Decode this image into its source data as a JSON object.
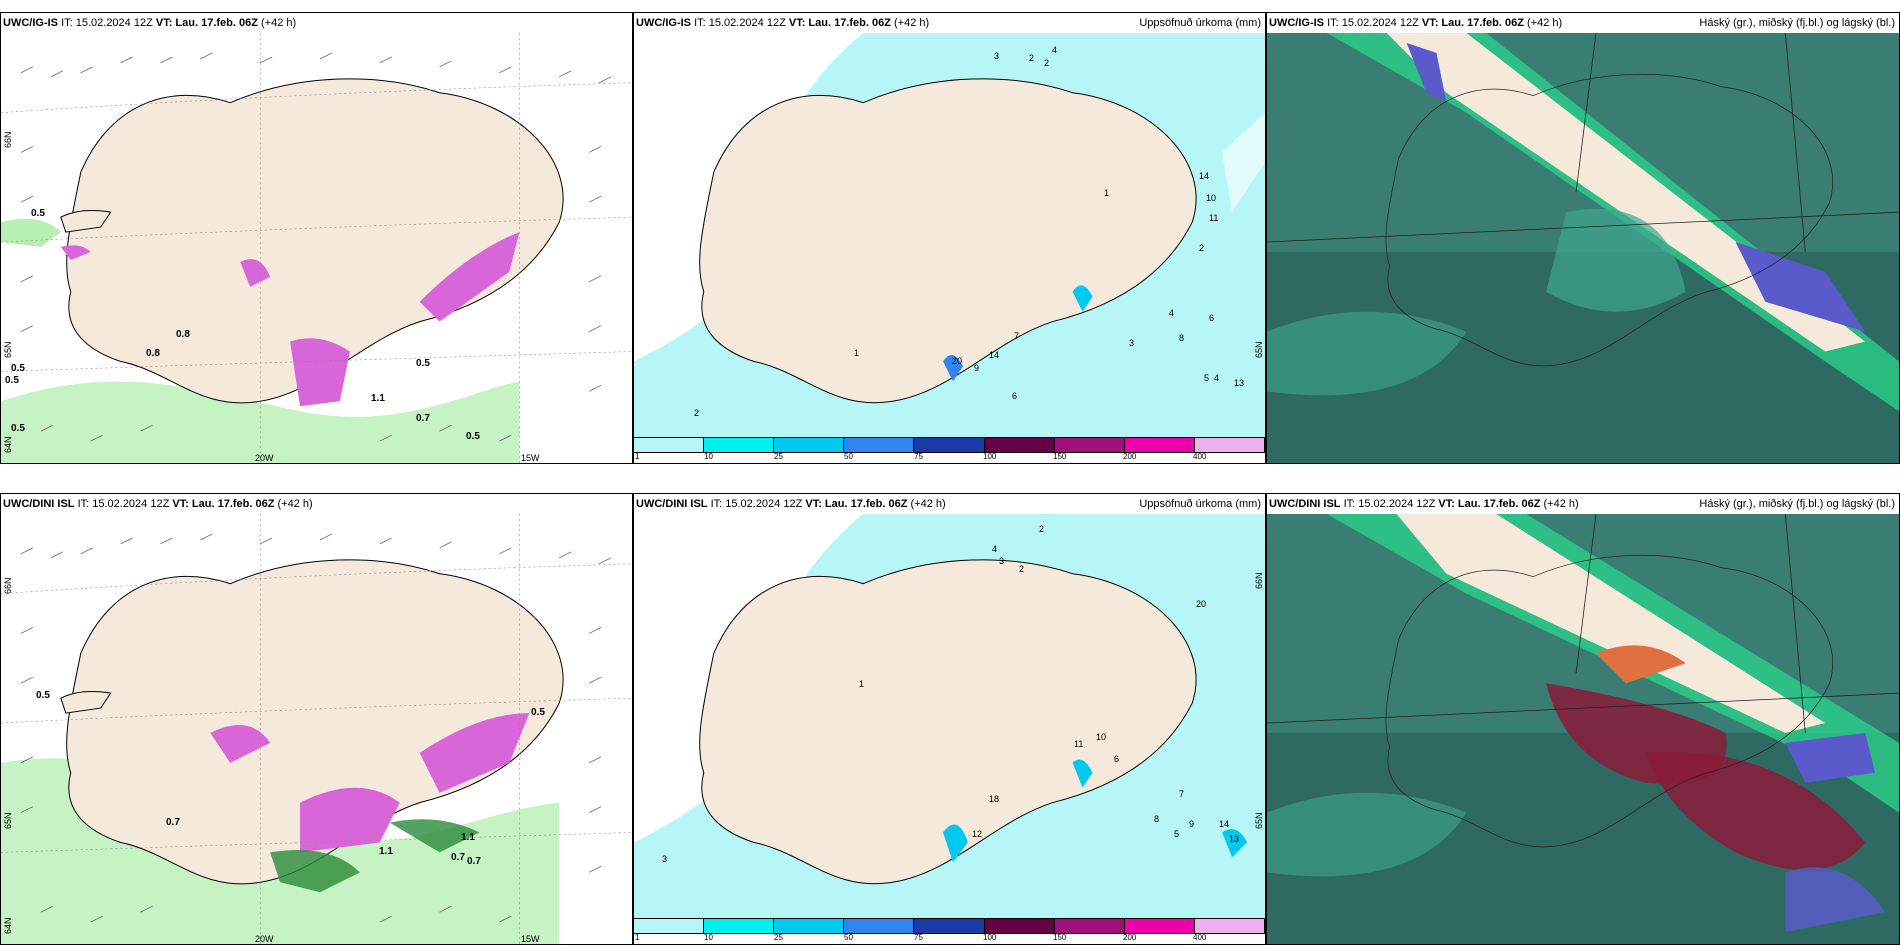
{
  "panels": {
    "top_left": {
      "model": "UWC/IG-IS",
      "it": "IT: 15.02.2024 12Z",
      "vt_label": "VT:",
      "vt": "Lau. 17.feb. 06Z",
      "lead": "(+42 h)",
      "right_title": ""
    },
    "top_mid": {
      "model": "UWC/IG-IS",
      "it": "IT: 15.02.2024 12Z",
      "vt_label": "VT:",
      "vt": "Lau. 17.feb. 06Z",
      "lead": "(+42 h)",
      "right_title": "Uppsöfnuð úrkoma (mm)"
    },
    "top_right": {
      "model": "UWC/IG-IS",
      "it": "IT: 15.02.2024 12Z",
      "vt_label": "VT:",
      "vt": "Lau. 17.feb. 06Z",
      "lead": "(+42 h)",
      "right_title": "Háský (gr.), miðský (fj.bl.) og lágský (bl.)"
    },
    "bot_left": {
      "model": "UWC/DINI ISL",
      "it": "IT: 15.02.2024 12Z",
      "vt_label": "VT:",
      "vt": "Lau. 17.feb. 06Z",
      "lead": "(+42 h)",
      "right_title": ""
    },
    "bot_mid": {
      "model": "UWC/DINI ISL",
      "it": "IT: 15.02.2024 12Z",
      "vt_label": "VT:",
      "vt": "Lau. 17.feb. 06Z",
      "lead": "(+42 h)",
      "right_title": "Uppsöfnuð úrkoma (mm)"
    },
    "bot_right": {
      "model": "UWC/DINI ISL",
      "it": "IT: 15.02.2024 12Z",
      "vt_label": "VT:",
      "vt": "Lau. 17.feb. 06Z",
      "lead": "(+42 h)",
      "right_title": "Háský (gr.), miðský (fj.bl.) og lágský (bl.)"
    }
  },
  "grid_labels": {
    "lat66": "66N",
    "lat65": "65N",
    "lat64": "64N",
    "lon20": "20W",
    "lon15": "15W"
  },
  "precip_labels": {
    "top": [
      "0.5",
      "0.5",
      "0.5",
      "0.5",
      "0.8",
      "0.8",
      "0.7",
      "0.5",
      "1.1",
      "0.5"
    ],
    "bottom": [
      "0.5",
      "0.7",
      "0.7",
      "0.7",
      "1.1",
      "1.1",
      "0.5"
    ]
  },
  "accum_numbers": {
    "top": [
      "2",
      "3",
      "4",
      "2",
      "1",
      "2",
      "3",
      "4",
      "1",
      "2",
      "6",
      "20",
      "14",
      "9",
      "7",
      "8",
      "6",
      "5",
      "4",
      "13",
      "10",
      "14",
      "11"
    ],
    "bottom": [
      "2",
      "4",
      "3",
      "2",
      "1",
      "6",
      "3",
      "5",
      "7",
      "8",
      "9",
      "12",
      "18",
      "14",
      "13",
      "11",
      "10",
      "20"
    ]
  },
  "colorbar": {
    "ticks": [
      "1",
      "10",
      "25",
      "50",
      "75",
      "100",
      "150",
      "200",
      "400"
    ],
    "colors": [
      "#b7f6f6",
      "#00f0f0",
      "#00c8ee",
      "#2f86f0",
      "#1a3aa8",
      "#660044",
      "#a0107a",
      "#ee00aa",
      "#f0b0f0"
    ]
  },
  "colors": {
    "land": "#f5e9dc",
    "precip_green": "#b8f0b4",
    "snow_magenta": "#d866d8",
    "accum_cyan": "#b7f6f6",
    "cloud_dark": "#2f6a62",
    "cloud_teal": "#3ea690",
    "cloud_green": "#2bd08a"
  }
}
